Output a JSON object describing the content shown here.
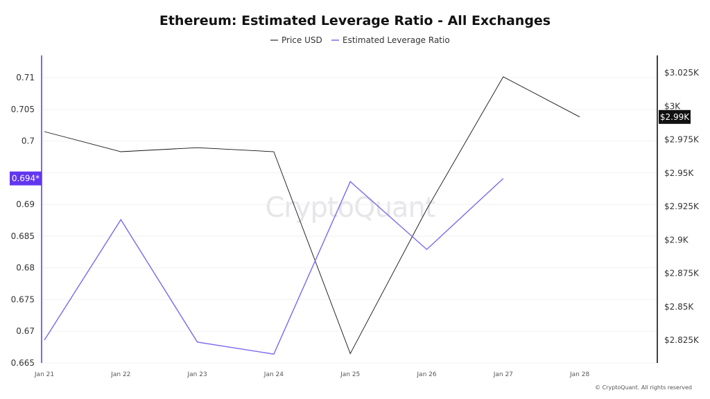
{
  "chart_data": {
    "type": "line",
    "title": "Ethereum: Estimated Leverage Ratio - All Exchanges",
    "categories": [
      "Jan 21",
      "Jan 22",
      "Jan 23",
      "Jan 24",
      "Jan 25",
      "Jan 26",
      "Jan 27",
      "Jan 28"
    ],
    "series": [
      {
        "name": "Price USD",
        "axis": "right",
        "color": "#000000",
        "values": [
          2981,
          2966,
          2969,
          2966,
          2815,
          2923,
          3022,
          2992
        ]
      },
      {
        "name": "Estimated Leverage Ratio",
        "axis": "left",
        "color": "#7b68ee",
        "values": [
          0.6686,
          0.6876,
          0.6683,
          0.6664,
          0.6936,
          0.6829,
          0.6941,
          null
        ]
      }
    ],
    "left_axis": {
      "ylim": [
        0.665,
        0.7135
      ],
      "ticks": [
        0.665,
        0.67,
        0.675,
        0.68,
        0.685,
        0.69,
        0.695,
        0.7,
        0.705,
        0.71
      ],
      "tick_labels": [
        "0.665",
        "0.67",
        "0.675",
        "0.68",
        "0.685",
        "0.69",
        "",
        "0.7",
        "0.705",
        "0.71"
      ],
      "current_label": "0.694*",
      "current_value": 0.6941,
      "color": "#7b68ee"
    },
    "right_axis": {
      "ylim": [
        2808,
        3038
      ],
      "ticks": [
        2825,
        2850,
        2875,
        2900,
        2925,
        2950,
        2975,
        3000,
        3025
      ],
      "tick_labels": [
        "$2.825K",
        "$2.85K",
        "$2.875K",
        "$2.9K",
        "$2.925K",
        "$2.95K",
        "$2.975K",
        "$3K",
        "$3.025K"
      ],
      "current_label": "$2.99K",
      "current_value": 2992,
      "color": "#000000"
    },
    "legend": [
      "Price USD",
      "Estimated Leverage Ratio"
    ],
    "watermark": "CryptoQuant",
    "footer": "© CryptoQuant. All rights reserved",
    "grid": true
  }
}
